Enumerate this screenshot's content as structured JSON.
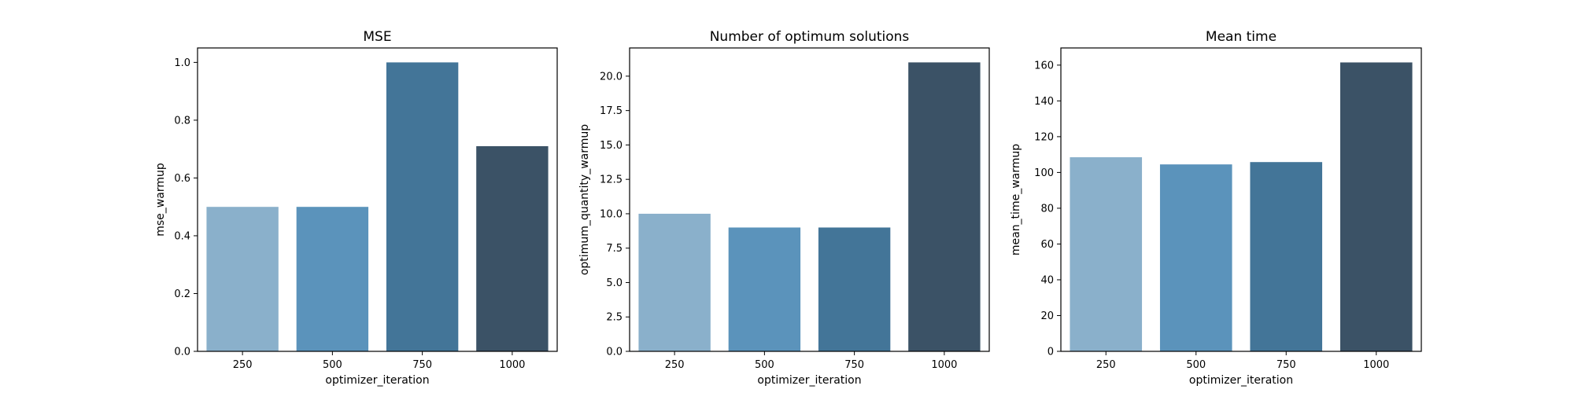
{
  "chart_data": [
    {
      "type": "bar",
      "title": "MSE",
      "xlabel": "optimizer_iteration",
      "ylabel": "mse_warmup",
      "categories": [
        "250",
        "500",
        "750",
        "1000"
      ],
      "values": [
        0.5,
        0.5,
        1.0,
        0.71
      ],
      "ylim": [
        0,
        1.05
      ],
      "yticks": [
        0.0,
        0.2,
        0.4,
        0.6,
        0.8,
        1.0
      ],
      "ytick_labels": [
        "0.0",
        "0.2",
        "0.4",
        "0.6",
        "0.8",
        "1.0"
      ],
      "grid": false,
      "colors": [
        "#8ab0cb",
        "#5b93bb",
        "#437598",
        "#3b5266"
      ]
    },
    {
      "type": "bar",
      "title": "Number of optimum solutions",
      "xlabel": "optimizer_iteration",
      "ylabel": "optimum_quantity_warmup",
      "categories": [
        "250",
        "500",
        "750",
        "1000"
      ],
      "values": [
        10,
        9,
        9,
        21
      ],
      "ylim": [
        0,
        22.05
      ],
      "yticks": [
        0.0,
        2.5,
        5.0,
        7.5,
        10.0,
        12.5,
        15.0,
        17.5,
        20.0
      ],
      "ytick_labels": [
        "0.0",
        "2.5",
        "5.0",
        "7.5",
        "10.0",
        "12.5",
        "15.0",
        "17.5",
        "20.0"
      ],
      "grid": false,
      "colors": [
        "#8ab0cb",
        "#5b93bb",
        "#437598",
        "#3b5266"
      ]
    },
    {
      "type": "bar",
      "title": "Mean time",
      "xlabel": "optimizer_iteration",
      "ylabel": "mean_time_warmup",
      "categories": [
        "250",
        "500",
        "750",
        "1000"
      ],
      "values": [
        108.5,
        104.5,
        105.8,
        161.5
      ],
      "ylim": [
        0,
        169.6
      ],
      "yticks": [
        0,
        20,
        40,
        60,
        80,
        100,
        120,
        140,
        160
      ],
      "ytick_labels": [
        "0",
        "20",
        "40",
        "60",
        "80",
        "100",
        "120",
        "140",
        "160"
      ],
      "grid": false,
      "colors": [
        "#8ab0cb",
        "#5b93bb",
        "#437598",
        "#3b5266"
      ]
    }
  ]
}
